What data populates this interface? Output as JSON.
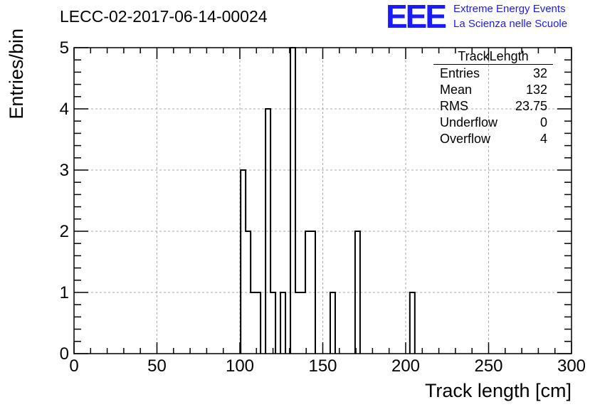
{
  "title": "LECC-02-2017-06-14-00024",
  "logo": {
    "mark": "EEE",
    "line1": "Extreme Energy Events",
    "line2": "La Scienza nelle Scuole",
    "color": "#1a1aff"
  },
  "stats_box": {
    "title": "TrackLength",
    "rows": [
      {
        "label": "Entries",
        "value": "32"
      },
      {
        "label": "Mean",
        "value": "132"
      },
      {
        "label": "RMS",
        "value": "23.75"
      },
      {
        "label": "Underflow",
        "value": "0"
      },
      {
        "label": "Overflow",
        "value": "4"
      }
    ]
  },
  "chart_data": {
    "type": "bar",
    "histogram": true,
    "xlabel": "Track length [cm]",
    "ylabel": "Entries/bin",
    "xlim": [
      0,
      300
    ],
    "ylim": [
      0,
      5
    ],
    "bin_width": 3,
    "xticks": [
      0,
      50,
      100,
      150,
      200,
      250,
      300
    ],
    "yticks": [
      0,
      1,
      2,
      3,
      4,
      5
    ],
    "grid": true,
    "bins": [
      {
        "x": 102,
        "y": 3
      },
      {
        "x": 105,
        "y": 2
      },
      {
        "x": 108,
        "y": 1
      },
      {
        "x": 111,
        "y": 1
      },
      {
        "x": 117,
        "y": 4
      },
      {
        "x": 120,
        "y": 1
      },
      {
        "x": 126,
        "y": 1
      },
      {
        "x": 132,
        "y": 5
      },
      {
        "x": 135,
        "y": 1
      },
      {
        "x": 138,
        "y": 1
      },
      {
        "x": 141,
        "y": 2
      },
      {
        "x": 144,
        "y": 2
      },
      {
        "x": 156,
        "y": 1
      },
      {
        "x": 171,
        "y": 2
      },
      {
        "x": 204,
        "y": 1
      }
    ]
  }
}
